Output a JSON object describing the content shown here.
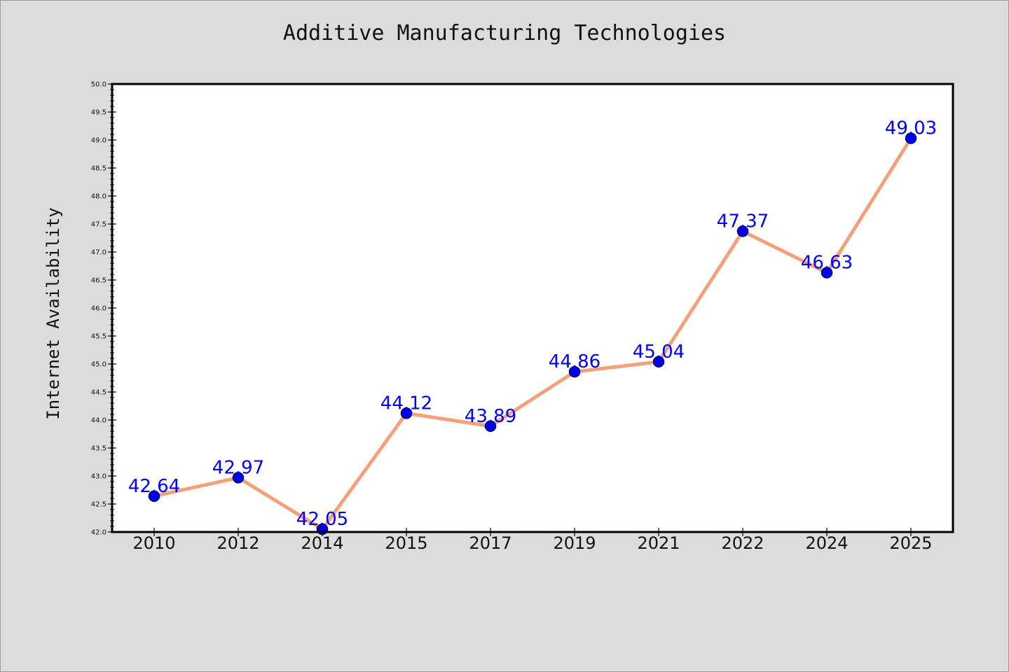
{
  "chart_data": {
    "type": "line",
    "title": "Additive Manufacturing Technologies",
    "xlabel": "",
    "ylabel": "Internet Availability",
    "categories": [
      "2010",
      "2012",
      "2014",
      "2015",
      "2017",
      "2019",
      "2021",
      "2022",
      "2024",
      "2025"
    ],
    "values": [
      42.64,
      42.97,
      42.05,
      44.12,
      43.89,
      44.86,
      45.04,
      47.37,
      46.63,
      49.03
    ],
    "data_labels": [
      "42.64",
      "42.97",
      "42.05",
      "44.12",
      "43.89",
      "44.86",
      "45.04",
      "47.37",
      "46.63",
      "49.03"
    ],
    "ylim": [
      42.0,
      50.0
    ],
    "yticks": [
      42.0,
      42.5,
      43.0,
      43.5,
      44.0,
      44.5,
      45.0,
      45.5,
      46.0,
      46.5,
      47.0,
      47.5,
      48.0,
      48.5,
      49.0,
      49.5,
      50.0
    ],
    "ytick_labels": [
      "42.0",
      "42.5",
      "43.0",
      "43.5",
      "44.0",
      "44.5",
      "45.0",
      "45.5",
      "46.0",
      "46.5",
      "47.0",
      "47.5",
      "48.0",
      "48.5",
      "49.0",
      "49.5",
      "50.0"
    ],
    "grid": false,
    "legend": "none",
    "colors": {
      "figure_background": "#dcdcdc",
      "plot_background": "#ffffff",
      "line": "#f4a07a",
      "marker_fill": "#0000ee",
      "marker_edge": "#000066",
      "data_label": "#0000ff",
      "axes": "#000000"
    }
  }
}
